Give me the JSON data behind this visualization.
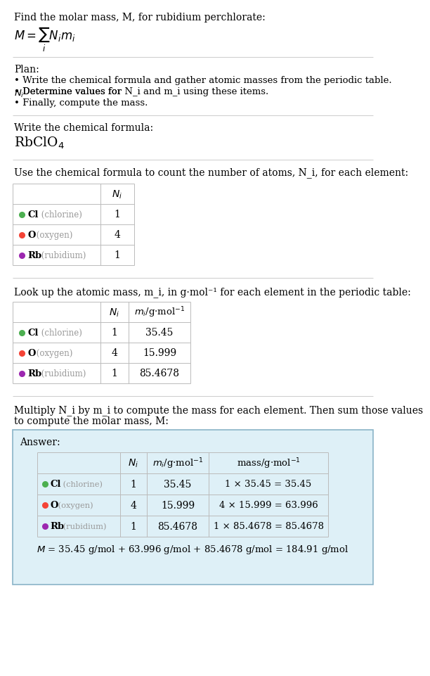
{
  "title_line1": "Find the molar mass, M, for rubidium perchlorate:",
  "bg_color": "#ffffff",
  "plan_header": "Plan:",
  "plan_bullets": [
    "• Write the chemical formula and gather atomic masses from the periodic table.",
    "• Determine values for N_i and m_i using these items.",
    "• Finally, compute the mass."
  ],
  "formula_label": "Write the chemical formula:",
  "count_label": "Use the chemical formula to count the number of atoms, N_i, for each element:",
  "lookup_label": "Look up the atomic mass, m_i, in g·mol⁻¹ for each element in the periodic table:",
  "multiply_label1": "Multiply N_i by m_i to compute the mass for each element. Then sum those values",
  "multiply_label2": "to compute the molar mass, M:",
  "answer_label": "Answer:",
  "final_eq": "M = 35.45 g/mol + 63.996 g/mol + 85.4678 g/mol = 184.91 g/mol",
  "elements": [
    {
      "symbol": "Cl",
      "name": "chlorine",
      "color": "#4caf50",
      "N": "1",
      "m": "35.45",
      "mass_expr": "1 × 35.45 = 35.45"
    },
    {
      "symbol": "O",
      "name": "oxygen",
      "color": "#f44336",
      "N": "4",
      "m": "15.999",
      "mass_expr": "4 × 15.999 = 63.996"
    },
    {
      "symbol": "Rb",
      "name": "rubidium",
      "color": "#9c27b0",
      "N": "1",
      "m": "85.4678",
      "mass_expr": "1 × 85.4678 = 85.4678"
    }
  ],
  "hline_color": "#cccccc",
  "table_line_color": "#bbbbbb",
  "ans_bg_color": "#def0f7",
  "ans_border_color": "#8ab4c8"
}
